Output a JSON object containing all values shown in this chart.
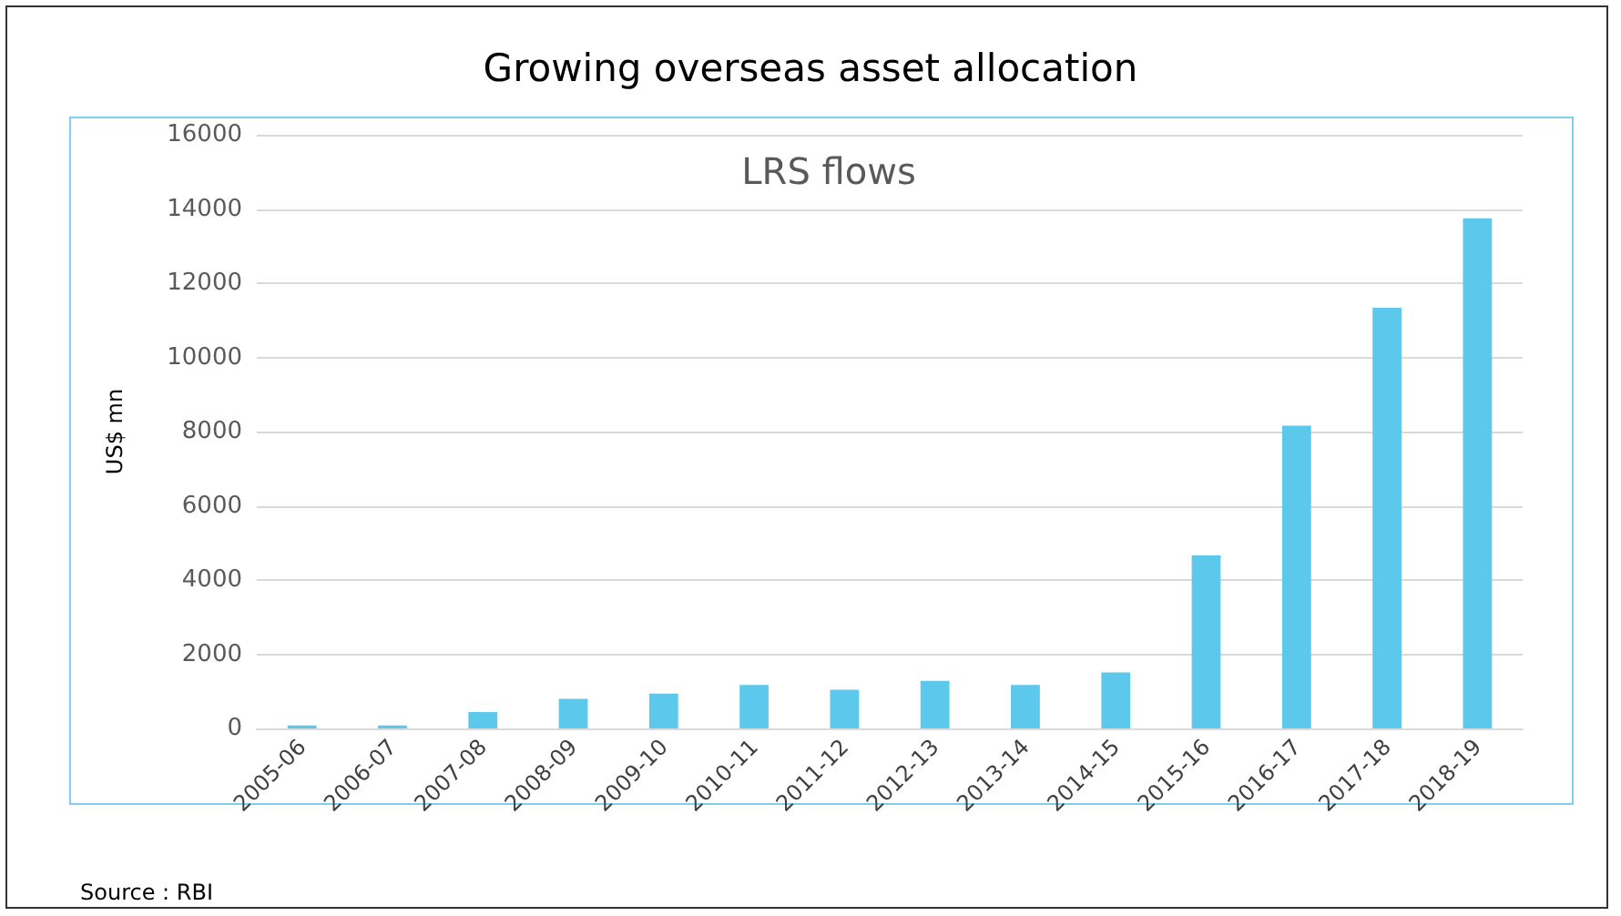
{
  "chart_data": {
    "type": "bar",
    "title": "Growing overseas asset allocation",
    "subtitle": "LRS flows",
    "ylabel": "US$ mn",
    "categories": [
      "2005-06",
      "2006-07",
      "2007-08",
      "2008-09",
      "2009-10",
      "2010-11",
      "2011-12",
      "2012-13",
      "2013-14",
      "2014-15",
      "2015-16",
      "2016-17",
      "2017-18",
      "2018-19"
    ],
    "values": [
      80,
      80,
      440,
      800,
      940,
      1170,
      1040,
      1280,
      1170,
      1510,
      4660,
      8160,
      11340,
      13750
    ],
    "color": "#5bc8ec",
    "ylim": [
      0,
      16000
    ],
    "yticks": [
      0,
      2000,
      4000,
      6000,
      8000,
      10000,
      12000,
      14000,
      16000
    ],
    "grid": "y",
    "annotations": [
      "Source : RBI"
    ]
  }
}
